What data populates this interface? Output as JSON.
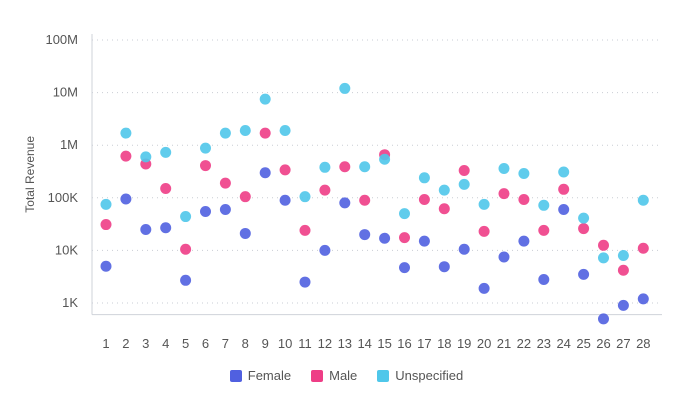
{
  "chart_data": {
    "type": "scatter",
    "title": "",
    "xlabel": "",
    "ylabel": "Total Revenue",
    "yscale": "log",
    "ylim": [
      600,
      130000000
    ],
    "yticks": [
      1000,
      10000,
      100000,
      1000000,
      10000000,
      100000000
    ],
    "ytick_labels": [
      "1K",
      "10K",
      "100K",
      "1M",
      "10M",
      "100M"
    ],
    "categories": [
      "1",
      "2",
      "3",
      "4",
      "5",
      "6",
      "7",
      "8",
      "9",
      "10",
      "11",
      "12",
      "13",
      "14",
      "15",
      "16",
      "17",
      "18",
      "19",
      "20",
      "21",
      "22",
      "23",
      "24",
      "25",
      "26",
      "27",
      "28"
    ],
    "grid": "horizontal dotted",
    "legend_position": "bottom",
    "series": [
      {
        "name": "Female",
        "color": "#5060e0",
        "values": [
          5000,
          95000,
          25000,
          27000,
          2700,
          55000,
          60000,
          21000,
          300000,
          90000,
          2500,
          10000,
          80000,
          20000,
          17000,
          4700,
          15000,
          4900,
          10500,
          1900,
          7500,
          15000,
          2800,
          60000,
          3500,
          500,
          900,
          1200
        ]
      },
      {
        "name": "Male",
        "color": "#ee3d86",
        "values": [
          31000,
          620000,
          440000,
          150000,
          10500,
          410000,
          190000,
          105000,
          1700000,
          340000,
          24000,
          140000,
          390000,
          90000,
          660000,
          17500,
          93000,
          62000,
          330000,
          23000,
          120000,
          93000,
          24000,
          145000,
          26000,
          12500,
          4200,
          11000
        ]
      },
      {
        "name": "Unspecified",
        "color": "#4fc7ea",
        "values": [
          75000,
          1700000,
          600000,
          730000,
          44000,
          880000,
          1700000,
          1900000,
          7500000,
          1900000,
          105000,
          380000,
          12000000,
          390000,
          540000,
          50000,
          240000,
          140000,
          180000,
          75000,
          360000,
          290000,
          72000,
          310000,
          41000,
          7200,
          8000,
          90000
        ]
      }
    ]
  }
}
